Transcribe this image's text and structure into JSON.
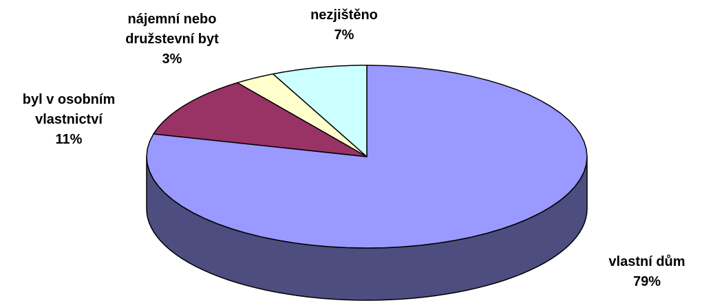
{
  "chart_data": {
    "type": "pie3d",
    "categories": [
      "vlastní dům",
      "byl v osobním vlastnictví",
      "nájemní nebo družstevní byt",
      "nezjištěno"
    ],
    "values": [
      79,
      11,
      3,
      7
    ],
    "value_labels": [
      "79%",
      "11%",
      "3%",
      "7%"
    ],
    "colors": [
      "#9999ff",
      "#993366",
      "#ffffcc",
      "#ccffff"
    ]
  }
}
